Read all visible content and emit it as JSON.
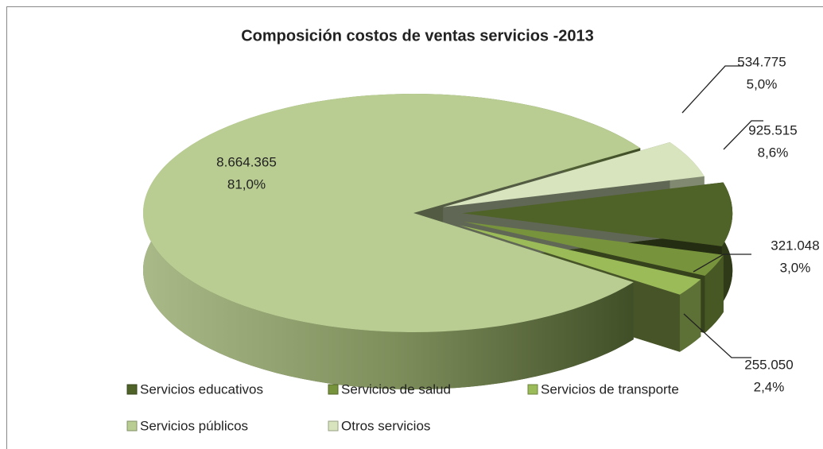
{
  "chart_data": {
    "type": "pie3d",
    "title": "Composición costos de ventas servicios -2013",
    "categories": [
      "Servicios educativos",
      "Servicios de salud",
      "Servicios de transporte",
      "Servicios públicos",
      "Otros servicios"
    ],
    "values": [
      925515,
      321048,
      255050,
      8664365,
      534775
    ],
    "value_labels": [
      "925.515",
      "321.048",
      "255.050",
      "8.664.365",
      "534.775"
    ],
    "percents": [
      8.6,
      3.0,
      2.4,
      81.0,
      5.0
    ],
    "percent_labels": [
      "8,6%",
      "3,0%",
      "2,4%",
      "81,0%",
      "5,0%"
    ],
    "colors": [
      "#4f6228",
      "#77933c",
      "#9bbb59",
      "#b9cd92",
      "#d7e4bd"
    ],
    "legend": "bottom"
  }
}
